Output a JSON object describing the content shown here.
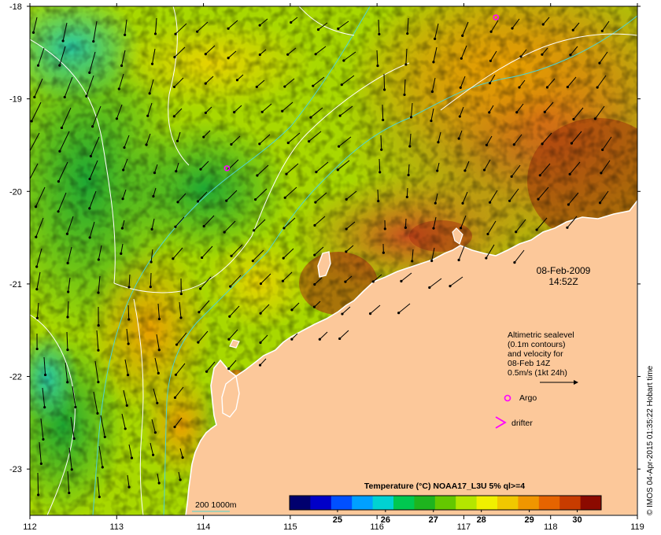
{
  "map": {
    "datetime_line1": "08-Feb-2009",
    "datetime_line2": "14:52Z",
    "lon_ticks": [
      "112",
      "113",
      "114",
      "115",
      "116",
      "117",
      "118",
      "119"
    ],
    "lat_ticks": [
      "-18",
      "-19",
      "-20",
      "-21",
      "-22",
      "-23"
    ],
    "lon_range": [
      112,
      119
    ],
    "lat_range": [
      -23.5,
      -18
    ],
    "colors": {
      "land": "#fcc89a",
      "coastline": "#ffffff",
      "vectors": "#000000",
      "bathymetry_contour": "#4fd3d3",
      "sealevel_contour": "#ffffff",
      "argo": "#ff00ff",
      "drifter": "#ff00ff"
    },
    "argo_floats": [
      {
        "lon": 114.27,
        "lat": -19.75
      },
      {
        "lon": 117.37,
        "lat": -18.12
      }
    ]
  },
  "legend": {
    "velocity_lines": [
      "Altimetric sealevel",
      "(0.1m contours)",
      "and velocity for",
      "08-Feb 14Z",
      "0.5m/s (1kt 24h)"
    ],
    "argo_label": "Argo",
    "drifter_label": "drifter",
    "argo_icon": "circle-marker-icon",
    "drifter_icon": "chevron-marker-icon",
    "bathymetry_label": "200  1000m"
  },
  "colorbar": {
    "title": "Temperature (°C) NOAA17_L3U 5% ql>=4",
    "ticks": [
      "25",
      "26",
      "27",
      "28",
      "29",
      "30"
    ],
    "range": [
      24,
      30.5
    ],
    "colors": [
      "#00006e",
      "#0000c8",
      "#0050ff",
      "#00a0ff",
      "#00d2d2",
      "#00c850",
      "#1eb41e",
      "#64c800",
      "#b4e600",
      "#f0f000",
      "#f0c800",
      "#f09600",
      "#e66400",
      "#c83c00",
      "#8c0a00"
    ]
  },
  "credit": "© IMOS 04-Apr-2015 01:35:22 Hobart time"
}
